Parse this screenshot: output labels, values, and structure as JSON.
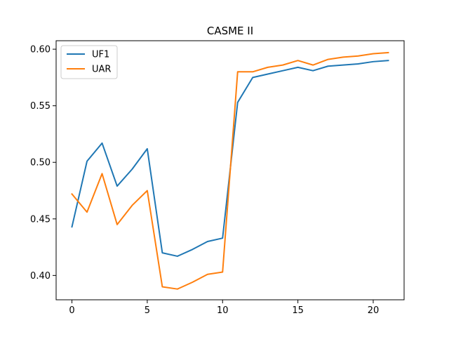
{
  "chart_data": {
    "type": "line",
    "title": "CASME II",
    "xlabel": "",
    "ylabel": "",
    "xlim": [
      -1.05,
      22.05
    ],
    "ylim": [
      0.3785,
      0.6075
    ],
    "xticks": [
      0,
      5,
      10,
      15,
      20
    ],
    "yticks": [
      0.4,
      0.45,
      0.5,
      0.55,
      0.6
    ],
    "ytick_labels": [
      "0.40",
      "0.45",
      "0.50",
      "0.55",
      "0.60"
    ],
    "grid": false,
    "legend_position": "top-left",
    "x": [
      0,
      1,
      2,
      3,
      4,
      5,
      6,
      7,
      8,
      9,
      10,
      11,
      12,
      13,
      14,
      15,
      16,
      17,
      18,
      19,
      20,
      21
    ],
    "series": [
      {
        "name": "UF1",
        "color": "#1f77b4",
        "values": [
          0.443,
          0.501,
          0.517,
          0.479,
          0.494,
          0.512,
          0.42,
          0.417,
          0.423,
          0.43,
          0.433,
          0.553,
          0.575,
          0.578,
          0.581,
          0.584,
          0.581,
          0.585,
          0.586,
          0.587,
          0.589,
          0.59
        ]
      },
      {
        "name": "UAR",
        "color": "#ff7f0e",
        "values": [
          0.472,
          0.456,
          0.49,
          0.445,
          0.462,
          0.475,
          0.39,
          0.388,
          0.394,
          0.401,
          0.403,
          0.58,
          0.58,
          0.584,
          0.586,
          0.59,
          0.586,
          0.591,
          0.593,
          0.594,
          0.596,
          0.597
        ]
      }
    ]
  }
}
